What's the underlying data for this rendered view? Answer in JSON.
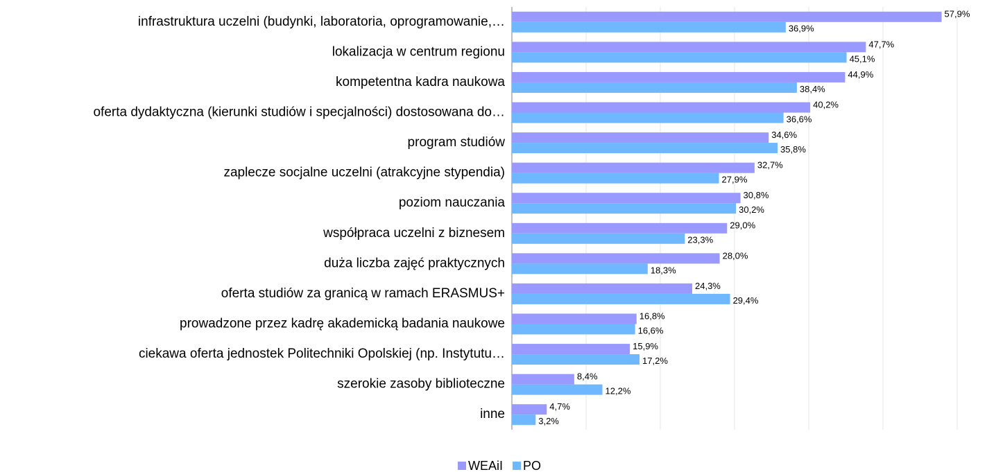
{
  "chart_data": {
    "type": "bar",
    "orientation": "horizontal",
    "categories": [
      "infrastruktura uczelni (budynki, laboratoria, oprogramowanie,…",
      "lokalizacja w centrum regionu",
      "kompetentna kadra naukowa",
      "oferta dydaktyczna (kierunki studiów i specjalności) dostosowana do…",
      "program studiów",
      "zaplecze socjalne uczelni (atrakcyjne stypendia)",
      "poziom nauczania",
      "współpraca uczelni z biznesem",
      "duża liczba zajęć praktycznych",
      "oferta studiów za granicą w ramach ERASMUS+",
      "prowadzone przez kadrę akademicką badania naukowe",
      "ciekawa oferta jednostek Politechniki Opolskiej (np. Instytutu…",
      "szerokie zasoby biblioteczne",
      "inne"
    ],
    "series": [
      {
        "name": "WEAiI",
        "color": "#9999ff",
        "values": [
          57.9,
          47.7,
          44.9,
          40.2,
          34.6,
          32.7,
          30.8,
          29.0,
          28.0,
          24.3,
          16.8,
          15.9,
          8.4,
          4.7
        ],
        "value_labels": [
          "57,9%",
          "47,7%",
          "44,9%",
          "40,2%",
          "34,6%",
          "32,7%",
          "30,8%",
          "29,0%",
          "28,0%",
          "24,3%",
          "16,8%",
          "15,9%",
          "8,4%",
          "4,7%"
        ]
      },
      {
        "name": "PO",
        "color": "#6fb7ff",
        "values": [
          36.9,
          45.1,
          38.4,
          36.6,
          35.8,
          27.9,
          30.2,
          23.3,
          18.3,
          29.4,
          16.6,
          17.2,
          12.2,
          3.2
        ],
        "value_labels": [
          "36,9%",
          "45,1%",
          "38,4%",
          "36,6%",
          "35,8%",
          "27,9%",
          "30,2%",
          "23,3%",
          "18,3%",
          "29,4%",
          "16,6%",
          "17,2%",
          "12,2%",
          "3,2%"
        ]
      }
    ],
    "xlim": [
      0,
      60
    ],
    "xticks": [
      0,
      10,
      20,
      30,
      40,
      50,
      60
    ],
    "grid": true,
    "legend": "bottom"
  }
}
